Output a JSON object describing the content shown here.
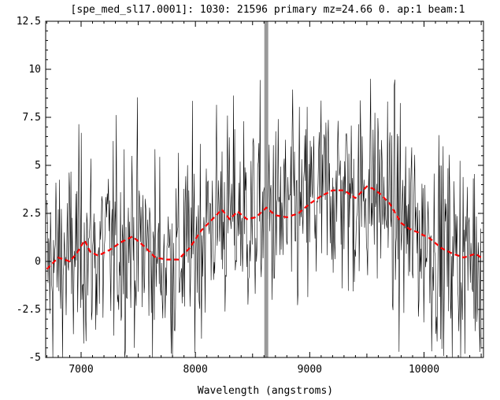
{
  "chart_data": {
    "type": "line",
    "title": "[spe_med_sl17.0001]: 1030: 21596 primary mz=24.66 0. ap:1 beam:1",
    "xlabel": "Wavelength (angstroms)",
    "ylabel": "",
    "xlim": [
      6690,
      10520
    ],
    "ylim": [
      -5,
      12.5
    ],
    "x_ticks": [
      7000,
      8000,
      9000,
      10000
    ],
    "x_tick_labels": [
      "7000",
      "8000",
      "9000",
      "10000"
    ],
    "y_ticks": [
      -5,
      -2.5,
      0,
      2.5,
      5,
      7.5,
      10,
      12.5
    ],
    "y_tick_labels": [
      "-5",
      "-2.5",
      "0",
      "2.5",
      "5",
      "7.5",
      "10",
      "12.5"
    ],
    "vertical_marker": {
      "x": 8620,
      "color": "#999999"
    },
    "series": [
      {
        "style": "noisy-spectrum",
        "color": "#000000",
        "x_range": [
          6700,
          10500
        ],
        "n_points": 720,
        "noise_sigma": 2.7,
        "trend_ref": "smoothed"
      },
      {
        "style": "dashed",
        "color": "#ff0000",
        "x": [
          6700,
          6800,
          6900,
          6960,
          7030,
          7080,
          7150,
          7250,
          7350,
          7450,
          7550,
          7650,
          7750,
          7850,
          7950,
          8050,
          8150,
          8230,
          8300,
          8370,
          8450,
          8530,
          8620,
          8700,
          8800,
          8900,
          9000,
          9100,
          9200,
          9300,
          9400,
          9500,
          9550,
          9620,
          9700,
          9800,
          9870,
          9950,
          10050,
          10150,
          10250,
          10350,
          10450,
          10500
        ],
        "y": [
          -0.4,
          0.2,
          0.0,
          0.4,
          1.1,
          0.5,
          0.3,
          0.6,
          1.0,
          1.3,
          0.8,
          0.2,
          0.1,
          0.1,
          0.7,
          1.6,
          2.2,
          2.7,
          2.2,
          2.6,
          2.2,
          2.3,
          2.8,
          2.4,
          2.3,
          2.5,
          3.0,
          3.4,
          3.7,
          3.7,
          3.3,
          3.9,
          3.8,
          3.5,
          3.0,
          2.0,
          1.7,
          1.5,
          1.2,
          0.7,
          0.4,
          0.2,
          0.4,
          0.2
        ]
      }
    ],
    "grid": false,
    "legend": "none"
  }
}
